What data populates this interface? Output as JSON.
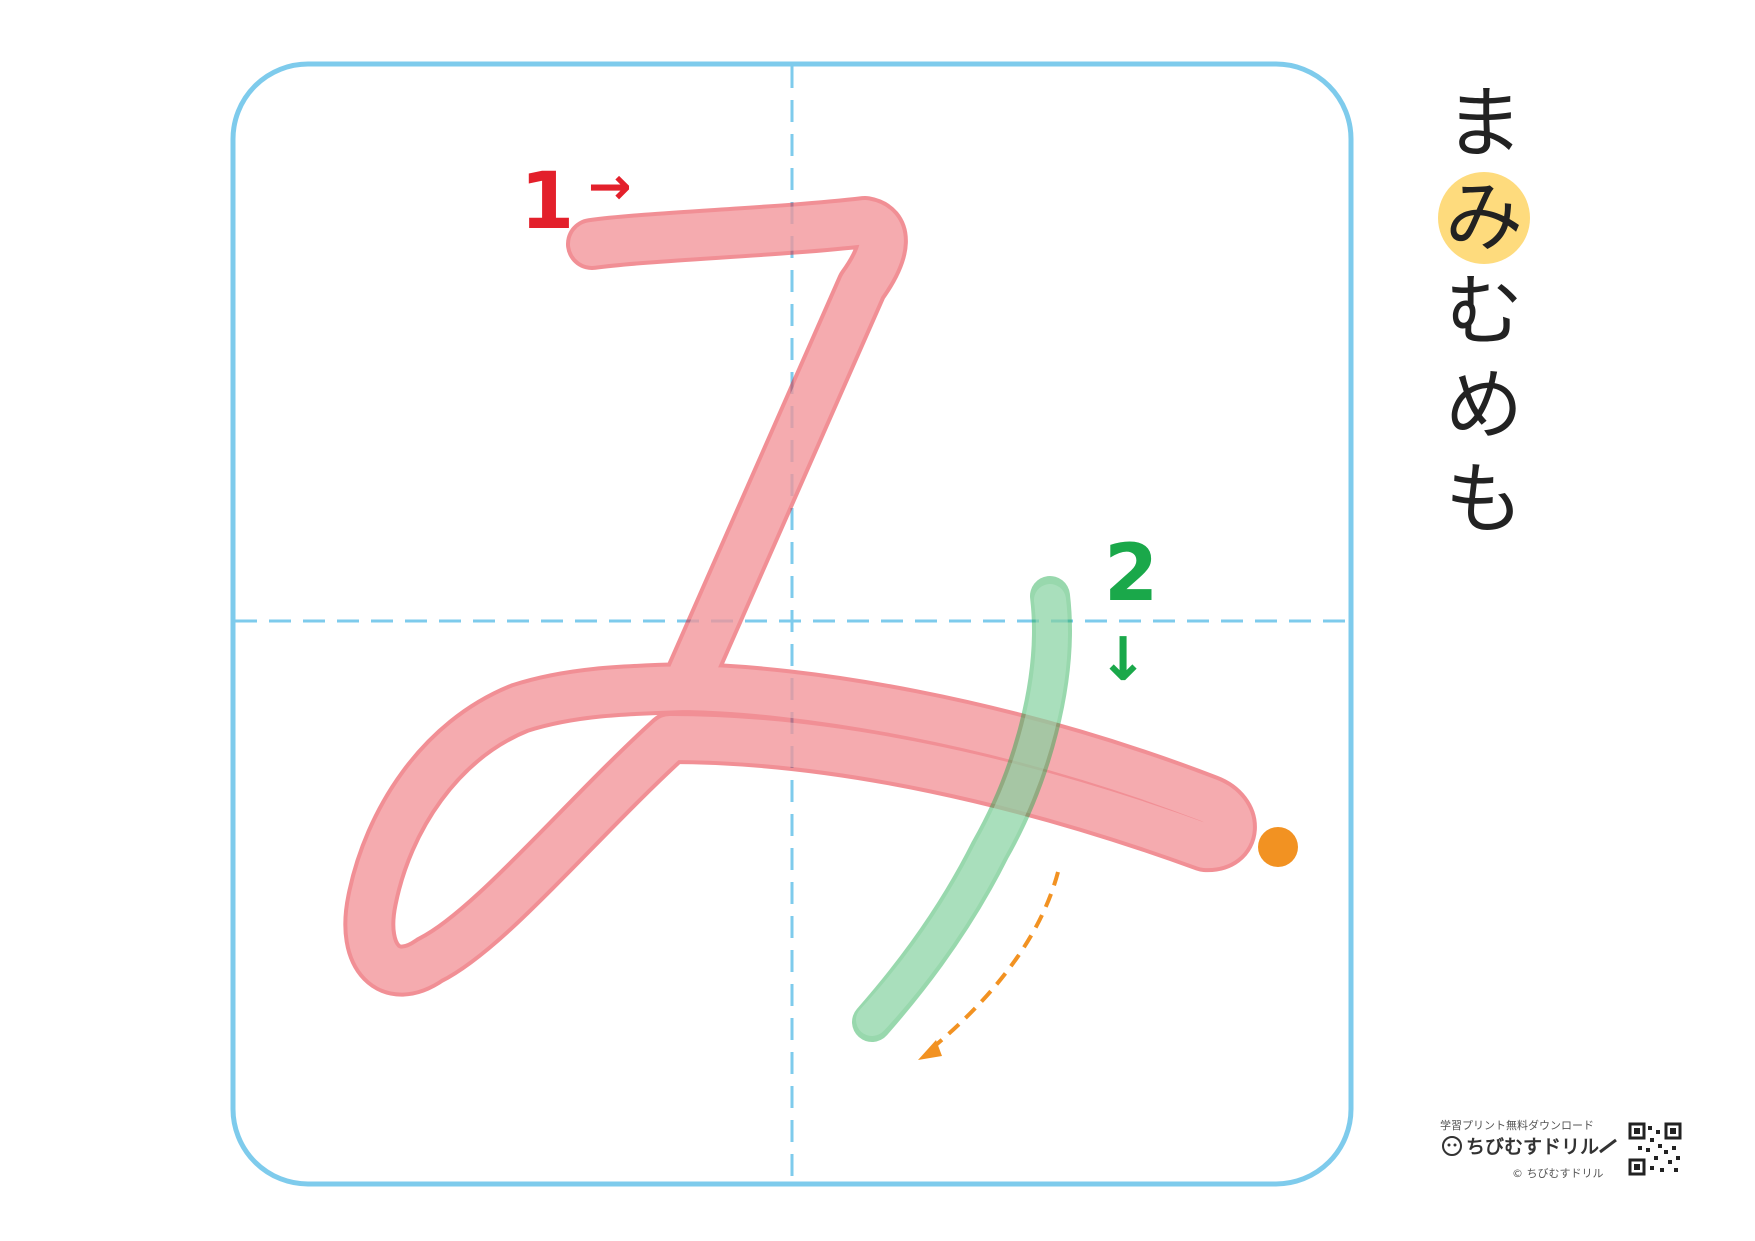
{
  "character": "み",
  "strokes": [
    {
      "number": "1",
      "arrow": "→",
      "color": "#e3202b",
      "fill": "#f5a3a7"
    },
    {
      "number": "2",
      "arrow": "↓",
      "color": "#1aa84a",
      "fill": "#a4e0bc"
    }
  ],
  "sidebar": {
    "kana": [
      "ま",
      "み",
      "む",
      "め",
      "も"
    ],
    "highlight_index": 1,
    "highlight_color": "#fedb7d"
  },
  "grid": {
    "border_color": "#7ecbec",
    "guide_color": "#7ecbec"
  },
  "end_marker_color": "#f29222",
  "guide_arrow_color": "#f29222",
  "branding": {
    "tagline": "学習プリント無料ダウンロード",
    "name": "ちびむすドリル",
    "copyright": "© ちびむすドリル"
  }
}
